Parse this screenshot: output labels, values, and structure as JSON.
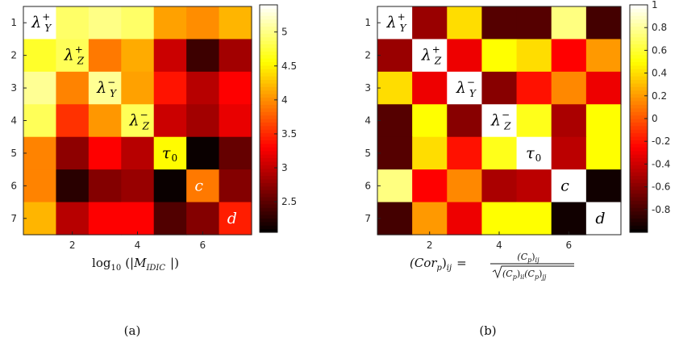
{
  "chart_data": [
    {
      "type": "heatmap",
      "panel_label": "(a)",
      "xlabel": "log10 (|M_IDIC |)",
      "xlabel_parts": {
        "log": "log",
        "base": "10",
        "open": "(|",
        "M": "M",
        "sub": "IDIC",
        "close": "|)"
      },
      "xticks": [
        2,
        4,
        6
      ],
      "yticks": [
        1,
        2,
        3,
        4,
        5,
        6,
        7
      ],
      "colorbar": {
        "ticks": [
          2.5,
          3,
          3.5,
          4,
          4.5,
          5
        ],
        "range": [
          2.05,
          5.4
        ]
      },
      "colormap": "hot",
      "matrix": [
        [
          5.4,
          4.9,
          5.0,
          4.9,
          4.1,
          4.0,
          4.2
        ],
        [
          4.7,
          4.85,
          3.9,
          4.15,
          3.05,
          2.35,
          2.85
        ],
        [
          5.05,
          3.95,
          5.05,
          4.1,
          3.4,
          2.95,
          3.3
        ],
        [
          4.85,
          3.55,
          4.05,
          4.85,
          3.05,
          2.85,
          3.2
        ],
        [
          3.95,
          2.75,
          3.3,
          2.95,
          4.55,
          2.1,
          2.55
        ],
        [
          3.95,
          2.25,
          2.7,
          2.8,
          2.1,
          3.9,
          2.7
        ],
        [
          4.2,
          2.95,
          3.3,
          3.3,
          2.45,
          2.7,
          3.45
        ]
      ],
      "diagonal_labels": [
        {
          "sym": "λ",
          "sub": "Y",
          "sup": "+"
        },
        {
          "sym": "λ",
          "sub": "Z",
          "sup": "+"
        },
        {
          "sym": "λ",
          "sub": "Y",
          "sup": "−"
        },
        {
          "sym": "λ",
          "sub": "Z",
          "sup": "−"
        },
        {
          "sym": "τ",
          "sub": "0",
          "sup": ""
        },
        {
          "sym": "c",
          "sub": "",
          "sup": ""
        },
        {
          "sym": "d",
          "sub": "",
          "sup": ""
        }
      ]
    },
    {
      "type": "heatmap",
      "panel_label": "(b)",
      "xlabel": "(Cor_p)_ij = (C_p)_ij / sqrt((C_p)_ii (C_p)_jj)",
      "xlabel_parts": {
        "lhs": "(Cor",
        "lhs_sub": "p",
        "lhs_close": ")",
        "lhs_idx": "ij",
        "eq": "=",
        "num": "(C",
        "num_sub": "p",
        "num_close": ")",
        "num_idx": "ij",
        "den1": "(C",
        "den1_sub": "p",
        "den1_close": ")",
        "den1_idx": "ii",
        "den2": "(C",
        "den2_sub": "p",
        "den2_close": ")",
        "den2_idx": "jj"
      },
      "xticks": [
        2,
        4,
        6
      ],
      "yticks": [
        1,
        2,
        3,
        4,
        5,
        6,
        7
      ],
      "colorbar": {
        "ticks": [
          -0.8,
          -0.6,
          -0.4,
          -0.2,
          0,
          0.2,
          0.4,
          0.6,
          0.8,
          1
        ],
        "range": [
          -1,
          1
        ]
      },
      "colormap": "hot",
      "matrix": [
        [
          1.0,
          -0.55,
          0.4,
          -0.75,
          -0.75,
          0.75,
          -0.8
        ],
        [
          -0.55,
          1.0,
          -0.3,
          0.5,
          0.4,
          -0.25,
          0.2
        ],
        [
          0.4,
          -0.3,
          1.0,
          -0.6,
          -0.2,
          0.15,
          -0.3
        ],
        [
          -0.75,
          0.5,
          -0.6,
          1.0,
          0.55,
          -0.5,
          0.5
        ],
        [
          -0.75,
          0.4,
          -0.2,
          0.55,
          1.0,
          -0.45,
          0.5
        ],
        [
          0.75,
          -0.25,
          0.15,
          -0.5,
          -0.45,
          1.0,
          -0.95
        ],
        [
          -0.8,
          0.2,
          -0.3,
          0.5,
          0.5,
          -0.95,
          1.0
        ]
      ],
      "diagonal_labels": [
        {
          "sym": "λ",
          "sub": "Y",
          "sup": "+"
        },
        {
          "sym": "λ",
          "sub": "Z",
          "sup": "+"
        },
        {
          "sym": "λ",
          "sub": "Y",
          "sup": "−"
        },
        {
          "sym": "λ",
          "sub": "Z",
          "sup": "−"
        },
        {
          "sym": "τ",
          "sub": "0",
          "sup": ""
        },
        {
          "sym": "c",
          "sub": "",
          "sup": ""
        },
        {
          "sym": "d",
          "sub": "",
          "sup": ""
        }
      ]
    }
  ]
}
